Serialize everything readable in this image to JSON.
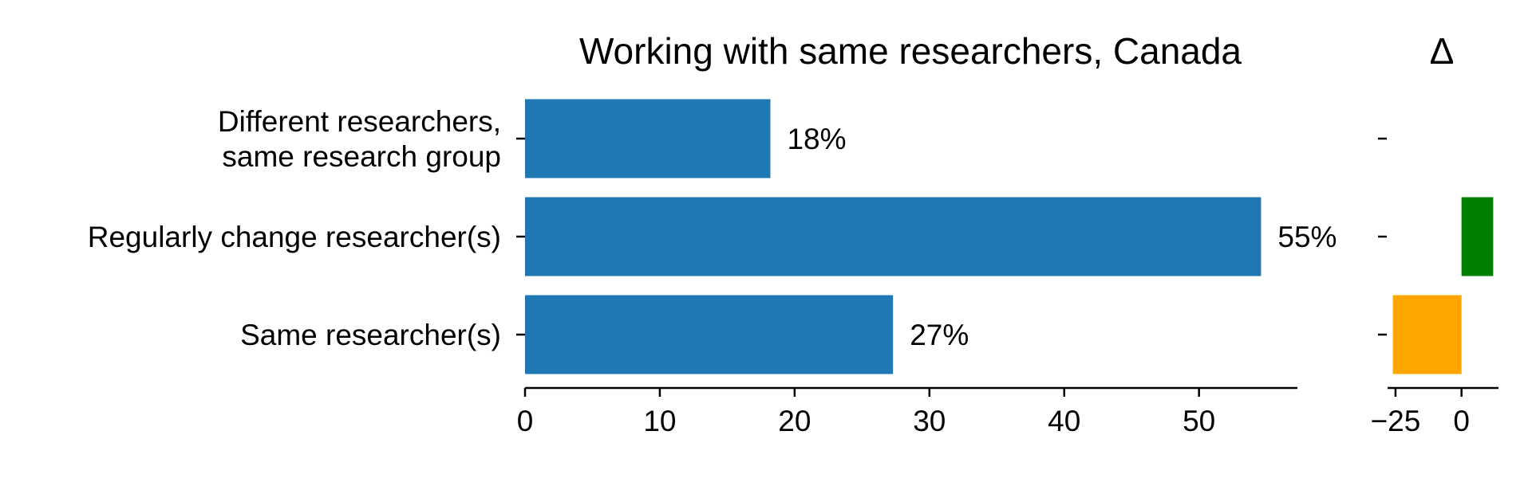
{
  "chart_data": [
    {
      "type": "bar",
      "orientation": "horizontal",
      "title": "Working with same researchers, Canada",
      "categories": [
        "Different researchers, same research group",
        "Regularly change researcher(s)",
        "Same researcher(s)"
      ],
      "category_lines": [
        [
          "Different researchers,",
          "same research group"
        ],
        [
          "Regularly change researcher(s)"
        ],
        [
          "Same researcher(s)"
        ]
      ],
      "values": [
        18.2,
        54.6,
        27.3
      ],
      "data_labels": [
        "18%",
        "55%",
        "27%"
      ],
      "bar_color": "#1f77b4",
      "xlim": [
        0,
        57.3
      ],
      "xticks": [
        0,
        10,
        20,
        30,
        40,
        50
      ],
      "xtick_labels": [
        "0",
        "10",
        "20",
        "30",
        "40",
        "50"
      ],
      "grid": false
    },
    {
      "type": "bar",
      "orientation": "horizontal",
      "title": "Δ",
      "categories": [
        "Different researchers, same research group",
        "Regularly change researcher(s)",
        "Same researcher(s)"
      ],
      "values": [
        0,
        12,
        -26
      ],
      "colors": [
        "#008000",
        "#008000",
        "#ffa500"
      ],
      "positive_color": "#008000",
      "negative_color": "#ffa500",
      "xlim": [
        -28,
        14
      ],
      "xticks": [
        -25,
        0
      ],
      "xtick_labels": [
        "−25",
        "0"
      ],
      "grid": false
    }
  ]
}
